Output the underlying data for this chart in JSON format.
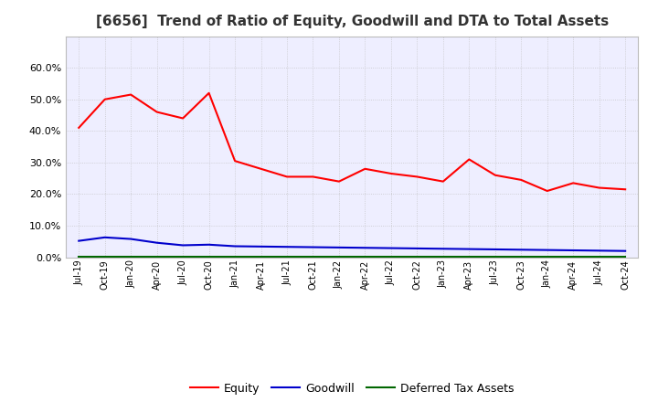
{
  "title": "[6656]  Trend of Ratio of Equity, Goodwill and DTA to Total Assets",
  "x_labels": [
    "Jul-19",
    "Oct-19",
    "Jan-20",
    "Apr-20",
    "Jul-20",
    "Oct-20",
    "Jan-21",
    "Apr-21",
    "Jul-21",
    "Oct-21",
    "Jan-22",
    "Apr-22",
    "Jul-22",
    "Oct-22",
    "Jan-23",
    "Apr-23",
    "Jul-23",
    "Oct-23",
    "Jan-24",
    "Apr-24",
    "Jul-24",
    "Oct-24"
  ],
  "equity": [
    0.41,
    0.5,
    0.515,
    0.46,
    0.44,
    0.52,
    0.305,
    0.28,
    0.255,
    0.255,
    0.24,
    0.28,
    0.265,
    0.255,
    0.24,
    0.31,
    0.26,
    0.245,
    0.21,
    0.235,
    0.22,
    0.215
  ],
  "goodwill": [
    0.052,
    0.063,
    0.058,
    0.046,
    0.038,
    0.04,
    0.035,
    0.034,
    0.033,
    0.032,
    0.031,
    0.03,
    0.029,
    0.028,
    0.027,
    0.026,
    0.025,
    0.024,
    0.023,
    0.022,
    0.021,
    0.02
  ],
  "dta": [
    0.001,
    0.001,
    0.001,
    0.001,
    0.001,
    0.001,
    0.001,
    0.001,
    0.001,
    0.001,
    0.001,
    0.001,
    0.001,
    0.001,
    0.001,
    0.001,
    0.001,
    0.001,
    0.001,
    0.001,
    0.001,
    0.001
  ],
  "equity_color": "#FF0000",
  "goodwill_color": "#0000CC",
  "dta_color": "#006600",
  "ylim_min": 0.0,
  "ylim_max": 0.7,
  "yticks": [
    0.0,
    0.1,
    0.2,
    0.3,
    0.4,
    0.5,
    0.6
  ],
  "background_color": "#FFFFFF",
  "plot_bg_color": "#EEEEFF",
  "grid_color": "#BBBBBB",
  "title_fontsize": 11,
  "tick_fontsize": 7,
  "legend_labels": [
    "Equity",
    "Goodwill",
    "Deferred Tax Assets"
  ]
}
